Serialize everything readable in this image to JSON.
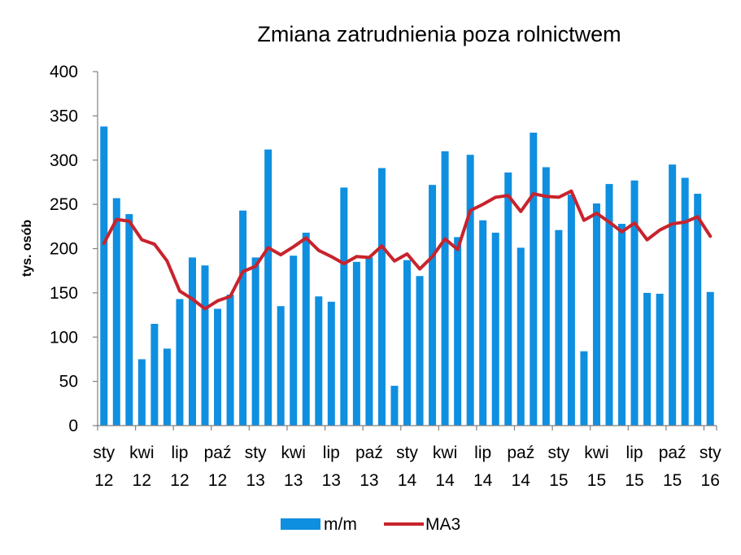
{
  "chart_data": {
    "type": "bar",
    "title": "Zmiana zatrudnienia poza rolnictwem",
    "ylabel": "tys. osób",
    "xlabel": "",
    "ylim": [
      0,
      400
    ],
    "yticks": [
      0,
      50,
      100,
      150,
      200,
      250,
      300,
      350,
      400
    ],
    "x_tick_labels": [
      {
        "month": "sty",
        "year": "12",
        "index": 0
      },
      {
        "month": "kwi",
        "year": "12",
        "index": 3
      },
      {
        "month": "lip",
        "year": "12",
        "index": 6
      },
      {
        "month": "paź",
        "year": "12",
        "index": 9
      },
      {
        "month": "sty",
        "year": "13",
        "index": 12
      },
      {
        "month": "kwi",
        "year": "13",
        "index": 15
      },
      {
        "month": "lip",
        "year": "13",
        "index": 18
      },
      {
        "month": "paź",
        "year": "13",
        "index": 21
      },
      {
        "month": "sty",
        "year": "14",
        "index": 24
      },
      {
        "month": "kwi",
        "year": "14",
        "index": 27
      },
      {
        "month": "lip",
        "year": "14",
        "index": 30
      },
      {
        "month": "paź",
        "year": "14",
        "index": 33
      },
      {
        "month": "sty",
        "year": "15",
        "index": 36
      },
      {
        "month": "kwi",
        "year": "15",
        "index": 39
      },
      {
        "month": "lip",
        "year": "15",
        "index": 42
      },
      {
        "month": "paź",
        "year": "15",
        "index": 45
      },
      {
        "month": "sty",
        "year": "16",
        "index": 48
      }
    ],
    "series": [
      {
        "name": "m/m",
        "type": "bar",
        "color": "#0f8fe0",
        "values": [
          338,
          257,
          239,
          75,
          115,
          87,
          143,
          190,
          181,
          132,
          148,
          243,
          190,
          312,
          135,
          192,
          218,
          146,
          140,
          269,
          185,
          190,
          291,
          45,
          187,
          169,
          272,
          310,
          213,
          306,
          232,
          218,
          286,
          201,
          331,
          292,
          221,
          261,
          84,
          251,
          273,
          228,
          277,
          150,
          149,
          295,
          280,
          262,
          151
        ]
      },
      {
        "name": "MA3",
        "type": "line",
        "color": "#c8232c",
        "values": [
          206,
          233,
          231,
          210,
          205,
          186,
          152,
          143,
          132,
          141,
          146,
          174,
          180,
          201,
          193,
          202,
          212,
          198,
          191,
          183,
          191,
          190,
          203,
          186,
          194,
          177,
          191,
          211,
          199,
          243,
          250,
          258,
          260,
          242,
          262,
          259,
          258,
          265,
          232,
          240,
          230,
          219,
          229,
          210,
          221,
          228,
          230,
          236,
          214
        ]
      }
    ],
    "grid": false,
    "legend_position": "bottom"
  }
}
